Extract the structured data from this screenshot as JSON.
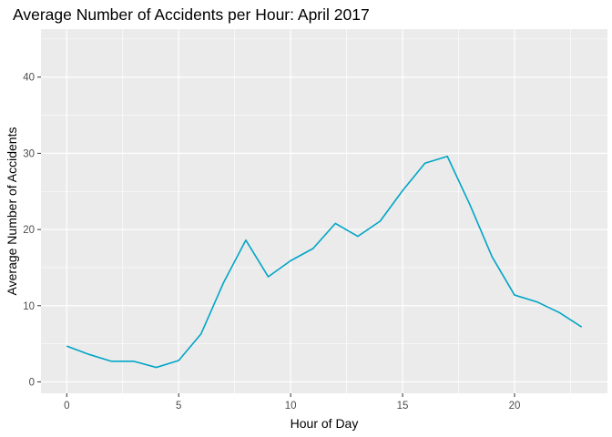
{
  "chart_data": {
    "type": "line",
    "title": "Average Number of Accidents per Hour: April 2017",
    "xlabel": "Hour of Day",
    "ylabel": "Average Number of Accidents",
    "x": [
      0,
      1,
      2,
      3,
      4,
      5,
      6,
      7,
      8,
      9,
      10,
      11,
      12,
      13,
      14,
      15,
      16,
      17,
      18,
      19,
      20,
      21,
      22,
      23
    ],
    "series": [
      {
        "values": [
          4.7,
          3.6,
          2.7,
          2.7,
          1.9,
          2.8,
          6.3,
          13.0,
          18.6,
          13.8,
          15.9,
          17.5,
          20.8,
          19.1,
          21.1,
          25.1,
          28.7,
          29.6,
          23.3,
          16.4,
          11.4,
          10.5,
          9.1,
          7.2
        ]
      }
    ],
    "xlim": [
      -1.15,
      24.15
    ],
    "ylim": [
      -1.5,
      46.3
    ],
    "x_ticks": [
      0,
      5,
      10,
      15,
      20
    ],
    "y_ticks": [
      0,
      10,
      20,
      30,
      40
    ],
    "x_tick_labels": [
      "0",
      "5",
      "10",
      "15",
      "20"
    ],
    "y_tick_labels": [
      "0",
      "10",
      "20",
      "30",
      "40"
    ],
    "grid": true,
    "line_color": "#00A5C6",
    "panel_background": "#EBEBEB",
    "grid_color": "#FFFFFF"
  }
}
